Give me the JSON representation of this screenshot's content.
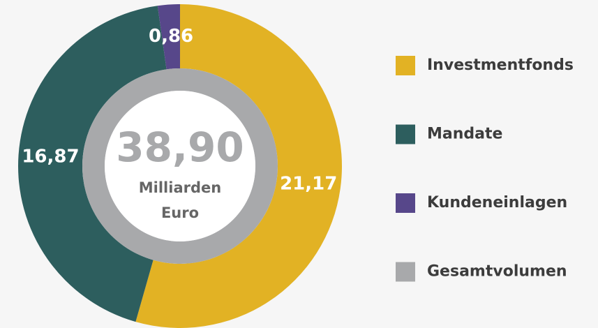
{
  "chart_data": {
    "type": "donut",
    "categories": [
      "Investmentfonds",
      "Mandate",
      "Kundeneinlagen"
    ],
    "values": [
      21.17,
      16.87,
      0.86
    ],
    "value_labels": [
      "21,17",
      "16,87",
      "0,86"
    ],
    "colors": [
      "#e2b224",
      "#2d5e5e",
      "#57478a"
    ],
    "total": {
      "name": "Gesamtvolumen",
      "color": "#a8a9ab",
      "value": 38.9,
      "value_label": "38,90"
    },
    "center_caption": [
      "Milliarden",
      "Euro"
    ]
  }
}
